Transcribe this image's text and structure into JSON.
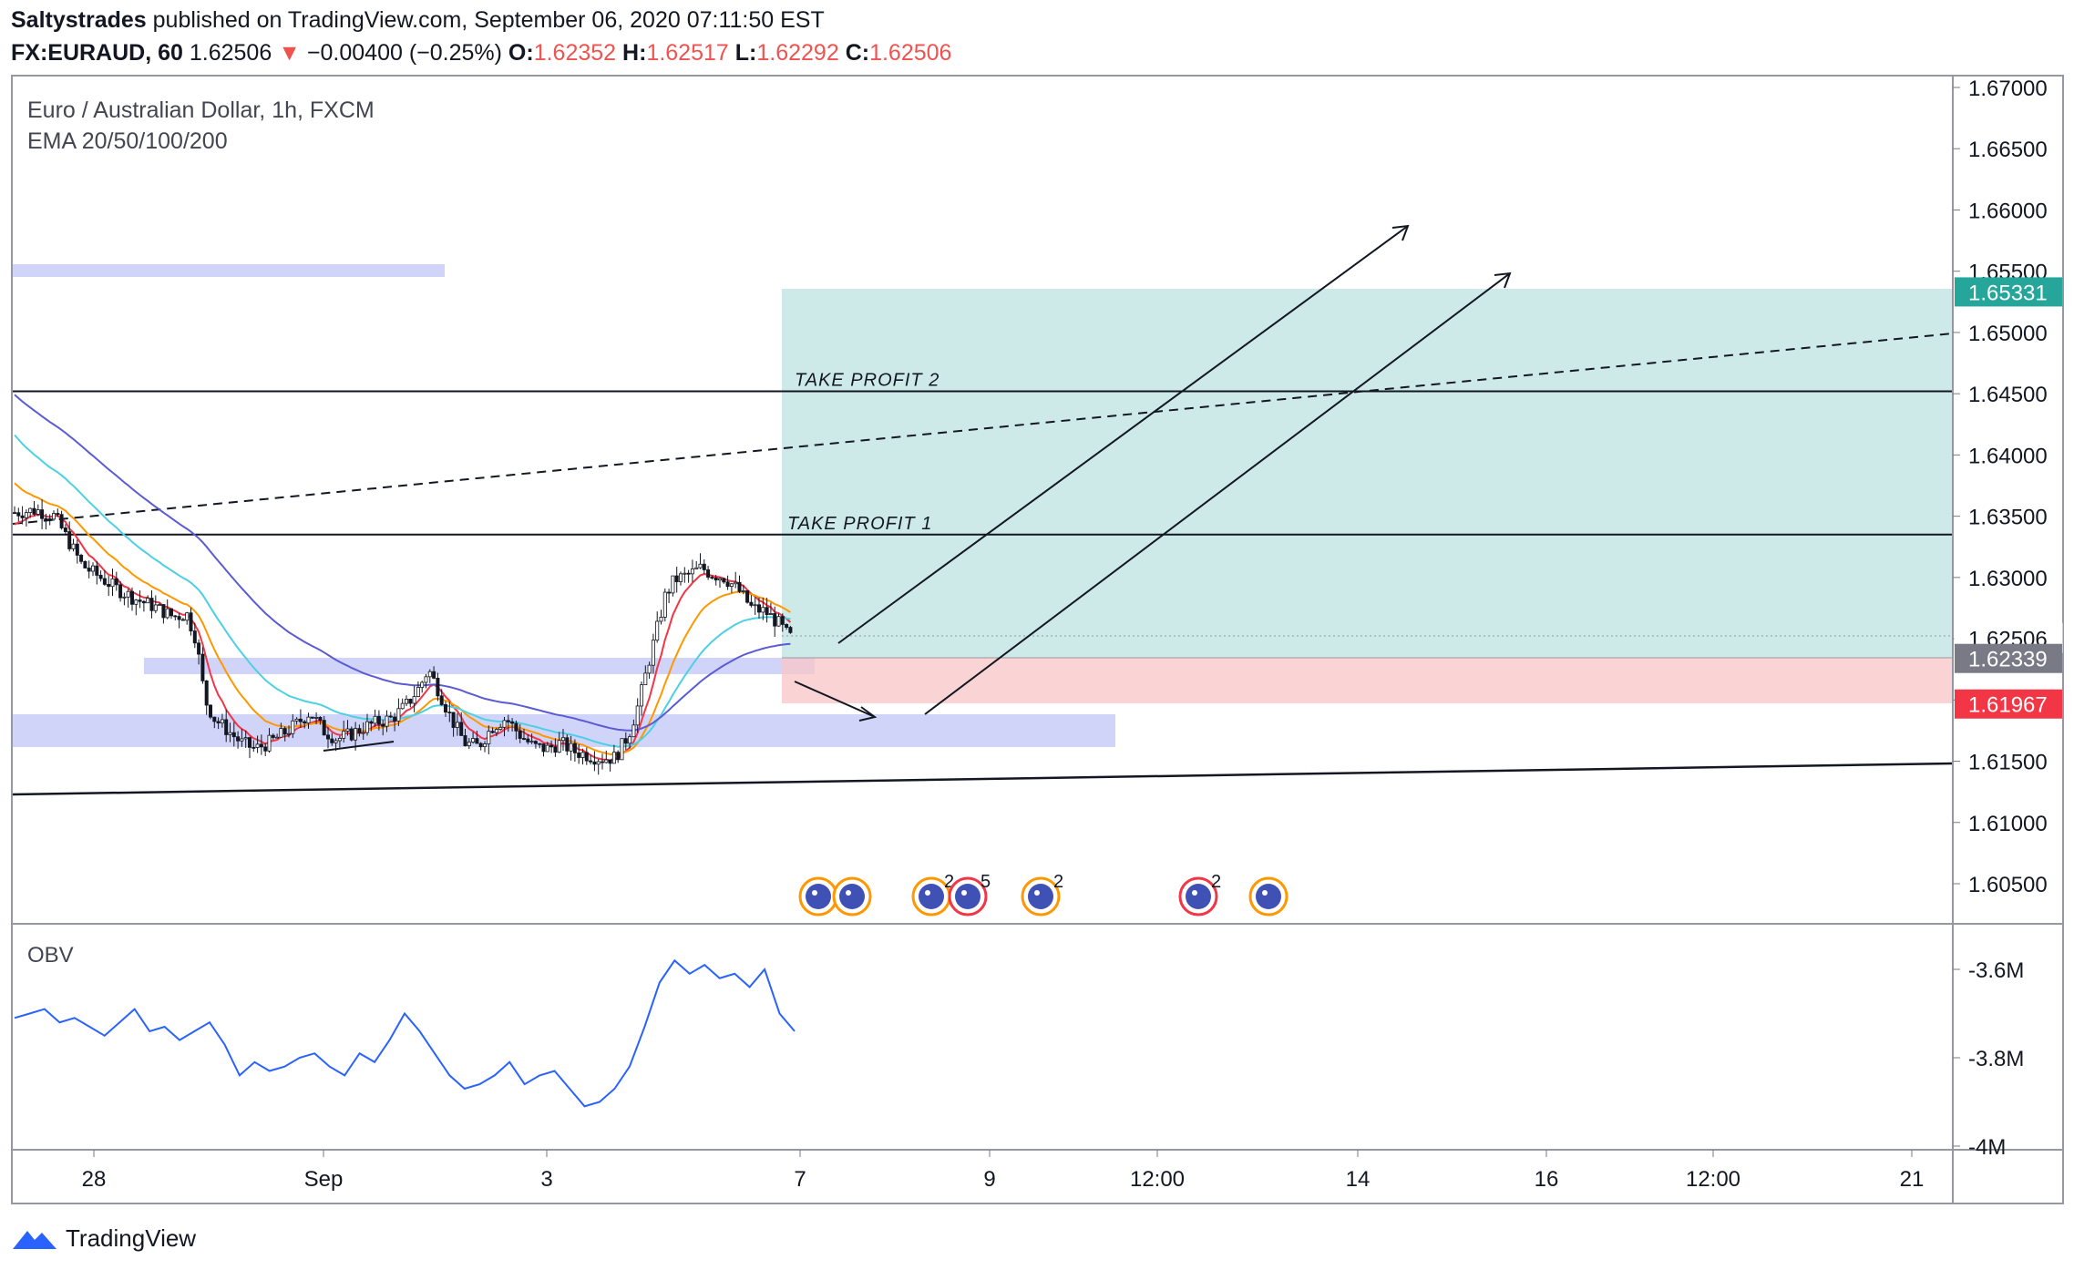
{
  "header": {
    "author": "Saltystrades",
    "published_text": "published on TradingView.com, September 06, 2020 07:11:50 EST",
    "symbol": "FX:EURAUD, 60",
    "last": "1.62506",
    "change_arrow": "▼",
    "change": "−0.00400 (−0.25%)",
    "o_label": "O:",
    "o_value": "1.62352",
    "h_label": "H:",
    "h_value": "1.62517",
    "l_label": "L:",
    "l_value": "1.62292",
    "c_label": "C:",
    "c_value": "1.62506"
  },
  "legend": {
    "title": "Euro / Australian Dollar, 1h, FXCM",
    "indicator": "EMA 20/50/100/200",
    "obv_label": "OBV"
  },
  "footer": {
    "brand": "TradingView"
  },
  "colors": {
    "up": "#26a69a",
    "down": "#ef5350",
    "ema20": "#f23645",
    "ema50": "#ff9800",
    "ema100": "#4dd0e1",
    "ema200": "#5b5bd6",
    "obv": "#2962ff",
    "zone": "#d1d4f9",
    "profit": "#b2dfdb",
    "loss": "#f8c6c6"
  },
  "chart_data": {
    "type": "candlestick",
    "price_axis": {
      "ticks": [
        1.605,
        1.61,
        1.615,
        1.62,
        1.625,
        1.63,
        1.635,
        1.64,
        1.645,
        1.65,
        1.655,
        1.66,
        1.665,
        1.67
      ],
      "tick_labels": [
        "1.60500",
        "1.61000",
        "1.61500",
        "1.62000",
        "1.62500",
        "1.63000",
        "1.63500",
        "1.64000",
        "1.64500",
        "1.65000",
        "1.65500",
        "1.66000",
        "1.66500",
        "1.67000"
      ],
      "ylim": [
        1.601,
        1.6715
      ]
    },
    "time_axis": {
      "labels": [
        "28",
        "Sep",
        "3",
        "7",
        "9",
        "12:00",
        "14",
        "16",
        "12:00",
        "21"
      ]
    },
    "price_tags": [
      {
        "value": "1.65331",
        "color": "#26a69a"
      },
      {
        "value": "1.62506",
        "color": "#ffffff",
        "text_color": "#131722"
      },
      {
        "value": "1.62339",
        "color": "#787b86"
      },
      {
        "value": "1.61967",
        "color": "#f23645"
      }
    ],
    "annotations": [
      {
        "text": "TAKE PROFIT 2",
        "price": 1.6452
      },
      {
        "text": "TAKE PROFIT 1",
        "price": 1.6335
      }
    ],
    "position": {
      "entry": 1.62339,
      "target": 1.65331,
      "stop": 1.61967
    },
    "horizontal_levels": [
      1.6452,
      1.6335
    ],
    "obv_axis": {
      "tick_labels": [
        "-3.6M",
        "-3.8M",
        "-4M"
      ],
      "ticks": [
        -3.6,
        -3.8,
        -4.0
      ]
    },
    "series": [
      {
        "name": "EMA 20"
      },
      {
        "name": "EMA 50"
      },
      {
        "name": "EMA 100"
      },
      {
        "name": "EMA 200"
      }
    ],
    "obv_values": [
      -3.71,
      -3.7,
      -3.69,
      -3.72,
      -3.71,
      -3.73,
      -3.75,
      -3.72,
      -3.69,
      -3.74,
      -3.73,
      -3.76,
      -3.74,
      -3.72,
      -3.77,
      -3.84,
      -3.81,
      -3.83,
      -3.82,
      -3.8,
      -3.79,
      -3.82,
      -3.84,
      -3.79,
      -3.81,
      -3.76,
      -3.7,
      -3.74,
      -3.79,
      -3.84,
      -3.87,
      -3.86,
      -3.84,
      -3.81,
      -3.86,
      -3.84,
      -3.83,
      -3.87,
      -3.91,
      -3.9,
      -3.87,
      -3.82,
      -3.73,
      -3.63,
      -3.58,
      -3.61,
      -3.59,
      -3.62,
      -3.61,
      -3.64,
      -3.6,
      -3.7,
      -3.74
    ],
    "obv_end_index_fraction": 0.4
  }
}
